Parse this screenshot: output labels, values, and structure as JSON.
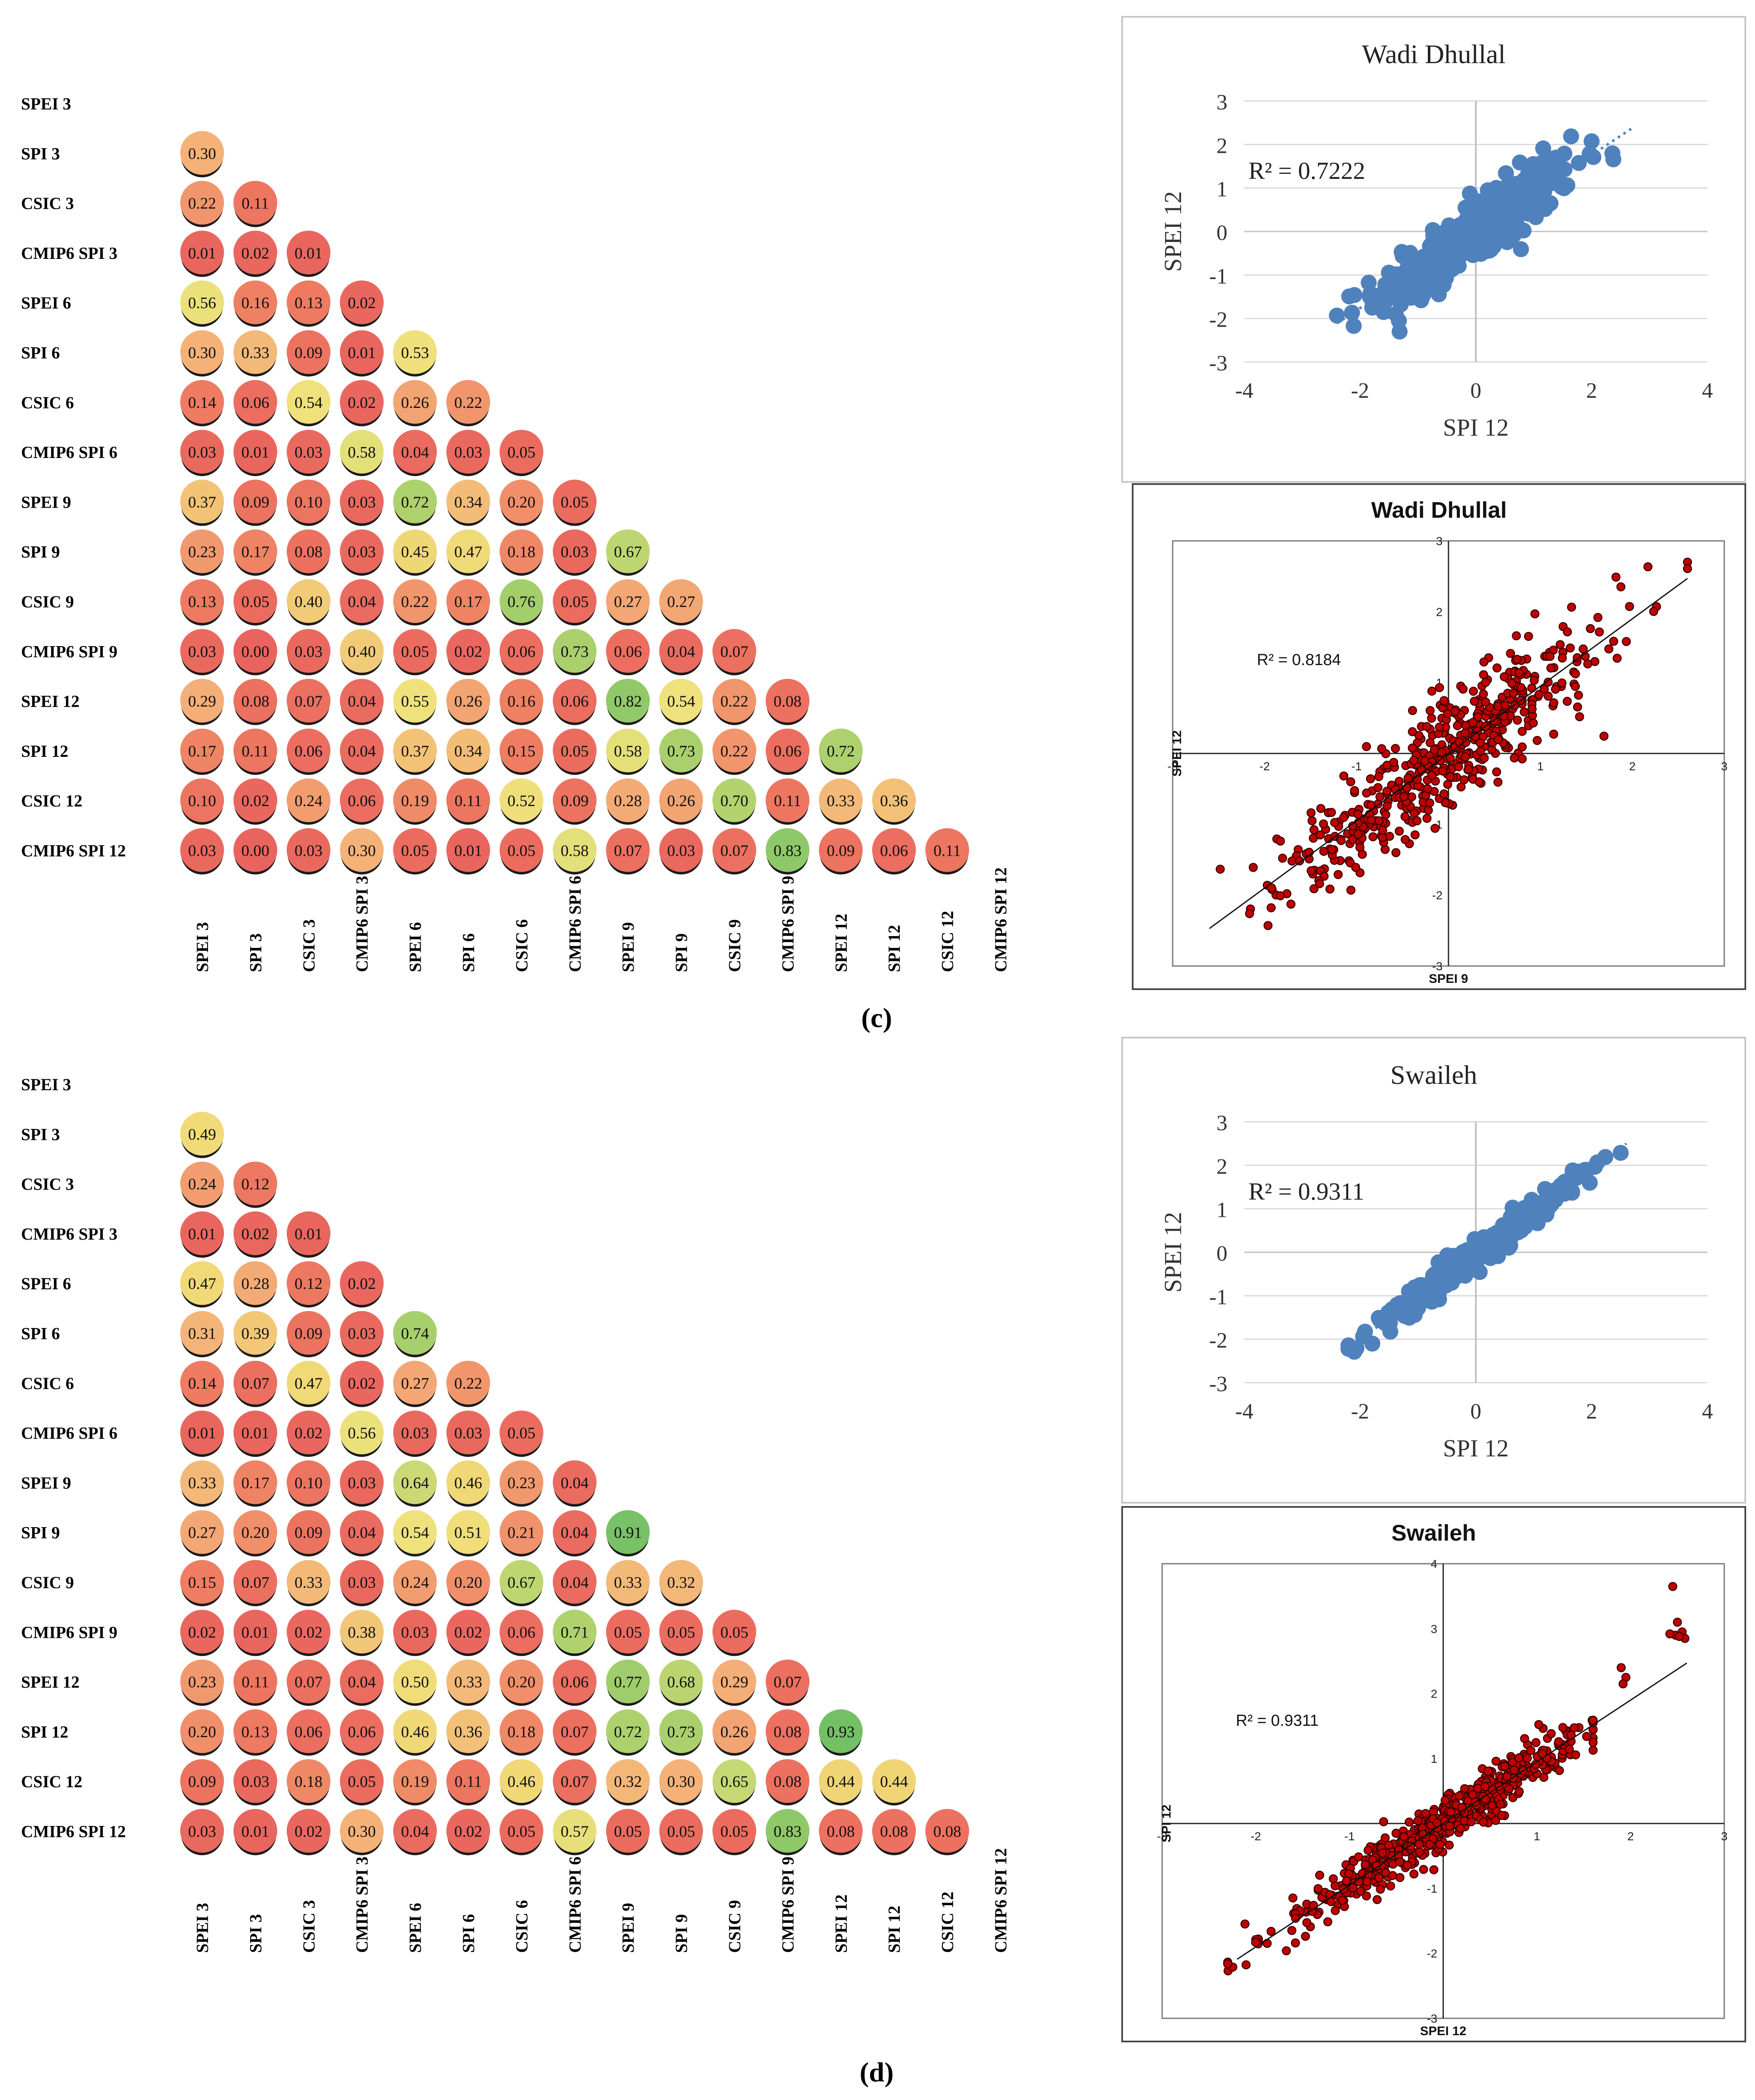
{
  "labels": [
    "SPEI 3",
    "SPI 3",
    "CSIC 3",
    "CMIP6 SPI 3",
    "SPEI 6",
    "SPI 6",
    "CSIC 6",
    "CMIP6 SPI 6",
    "SPEI 9",
    "SPI 9",
    "CSIC 9",
    "CMIP6 SPI 9",
    "SPEI 12",
    "SPI 12",
    "CSIC 12",
    "CMIP6 SPI 12"
  ],
  "panels": [
    {
      "label": "c",
      "caption": "(c)",
      "matrix": [
        [],
        [
          "0.30"
        ],
        [
          "0.22",
          "0.11"
        ],
        [
          "0.01",
          "0.02",
          "0.01"
        ],
        [
          "0.56",
          "0.16",
          "0.13",
          "0.02"
        ],
        [
          "0.30",
          "0.33",
          "0.09",
          "0.01",
          "0.53"
        ],
        [
          "0.14",
          "0.06",
          "0.54",
          "0.02",
          "0.26",
          "0.22"
        ],
        [
          "0.03",
          "0.01",
          "0.03",
          "0.58",
          "0.04",
          "0.03",
          "0.05"
        ],
        [
          "0.37",
          "0.09",
          "0.10",
          "0.03",
          "0.72",
          "0.34",
          "0.20",
          "0.05"
        ],
        [
          "0.23",
          "0.17",
          "0.08",
          "0.03",
          "0.45",
          "0.47",
          "0.18",
          "0.03",
          "0.67"
        ],
        [
          "0.13",
          "0.05",
          "0.40",
          "0.04",
          "0.22",
          "0.17",
          "0.76",
          "0.05",
          "0.27",
          "0.27"
        ],
        [
          "0.03",
          "0.00",
          "0.03",
          "0.40",
          "0.05",
          "0.02",
          "0.06",
          "0.73",
          "0.06",
          "0.04",
          "0.07"
        ],
        [
          "0.29",
          "0.08",
          "0.07",
          "0.04",
          "0.55",
          "0.26",
          "0.16",
          "0.06",
          "0.82",
          "0.54",
          "0.22",
          "0.08"
        ],
        [
          "0.17",
          "0.11",
          "0.06",
          "0.04",
          "0.37",
          "0.34",
          "0.15",
          "0.05",
          "0.58",
          "0.73",
          "0.22",
          "0.06",
          "0.72"
        ],
        [
          "0.10",
          "0.02",
          "0.24",
          "0.06",
          "0.19",
          "0.11",
          "0.52",
          "0.09",
          "0.28",
          "0.26",
          "0.70",
          "0.11",
          "0.33",
          "0.36"
        ],
        [
          "0.03",
          "0.00",
          "0.03",
          "0.30",
          "0.05",
          "0.01",
          "0.05",
          "0.58",
          "0.07",
          "0.03",
          "0.07",
          "0.83",
          "0.09",
          "0.06",
          "0.11"
        ]
      ],
      "scatter_blue": {
        "title": "Wadi Dhullal",
        "r2": "R² = 0.7222",
        "xlabel": "SPI 12",
        "ylabel": "SPEI 12",
        "xticks": [
          "-4",
          "-2",
          "0",
          "2",
          "4"
        ],
        "yticks": [
          "3",
          "2",
          "1",
          "0",
          "-1",
          "-2",
          "-3"
        ]
      },
      "scatter_red": {
        "title": "Wadi Dhullal",
        "r2": "R² = 0.8184",
        "xlabel": "SPEI 9",
        "ylabel": "SPEI 12",
        "xticks": [
          "-3",
          "-2",
          "-1",
          "0",
          "1",
          "2",
          "3"
        ],
        "yticks": [
          "3",
          "2",
          "1",
          "-1",
          "-2",
          "-3"
        ]
      }
    },
    {
      "label": "d",
      "caption": "(d)",
      "matrix": [
        [],
        [
          "0.49"
        ],
        [
          "0.24",
          "0.12"
        ],
        [
          "0.01",
          "0.02",
          "0.01"
        ],
        [
          "0.47",
          "0.28",
          "0.12",
          "0.02"
        ],
        [
          "0.31",
          "0.39",
          "0.09",
          "0.03",
          "0.74"
        ],
        [
          "0.14",
          "0.07",
          "0.47",
          "0.02",
          "0.27",
          "0.22"
        ],
        [
          "0.01",
          "0.01",
          "0.02",
          "0.56",
          "0.03",
          "0.03",
          "0.05"
        ],
        [
          "0.33",
          "0.17",
          "0.10",
          "0.03",
          "0.64",
          "0.46",
          "0.23",
          "0.04"
        ],
        [
          "0.27",
          "0.20",
          "0.09",
          "0.04",
          "0.54",
          "0.51",
          "0.21",
          "0.04",
          "0.91"
        ],
        [
          "0.15",
          "0.07",
          "0.33",
          "0.03",
          "0.24",
          "0.20",
          "0.67",
          "0.04",
          "0.33",
          "0.32"
        ],
        [
          "0.02",
          "0.01",
          "0.02",
          "0.38",
          "0.03",
          "0.02",
          "0.06",
          "0.71",
          "0.05",
          "0.05",
          "0.05"
        ],
        [
          "0.23",
          "0.11",
          "0.07",
          "0.04",
          "0.50",
          "0.33",
          "0.20",
          "0.06",
          "0.77",
          "0.68",
          "0.29",
          "0.07"
        ],
        [
          "0.20",
          "0.13",
          "0.06",
          "0.06",
          "0.46",
          "0.36",
          "0.18",
          "0.07",
          "0.72",
          "0.73",
          "0.26",
          "0.08",
          "0.93"
        ],
        [
          "0.09",
          "0.03",
          "0.18",
          "0.05",
          "0.19",
          "0.11",
          "0.46",
          "0.07",
          "0.32",
          "0.30",
          "0.65",
          "0.08",
          "0.44",
          "0.44"
        ],
        [
          "0.03",
          "0.01",
          "0.02",
          "0.30",
          "0.04",
          "0.02",
          "0.05",
          "0.57",
          "0.05",
          "0.05",
          "0.05",
          "0.83",
          "0.08",
          "0.08",
          "0.08"
        ]
      ],
      "scatter_blue": {
        "title": "Swaileh",
        "r2": "R² = 0.9311",
        "xlabel": "SPI 12",
        "ylabel": "SPEI 12",
        "xticks": [
          "-4",
          "-2",
          "0",
          "2",
          "4"
        ],
        "yticks": [
          "3",
          "2",
          "1",
          "0",
          "-1",
          "-2",
          "-3"
        ]
      },
      "scatter_red": {
        "title": "Swaileh",
        "r2": "R² = 0.9311",
        "xlabel": "SPEI 12",
        "ylabel": "SPI 12",
        "xticks": [
          "-3",
          "-2",
          "-1",
          "0",
          "1",
          "2",
          "3"
        ],
        "yticks": [
          "4",
          "3",
          "2",
          "1",
          "-1",
          "-2",
          "-3"
        ]
      }
    }
  ],
  "chart_data": [
    {
      "type": "heatmap",
      "title": "(c) correlation matrix (lower triangle)",
      "rows": [
        "SPEI 3",
        "SPI 3",
        "CSIC 3",
        "CMIP6 SPI 3",
        "SPEI 6",
        "SPI 6",
        "CSIC 6",
        "CMIP6 SPI 6",
        "SPEI 9",
        "SPI 9",
        "CSIC 9",
        "CMIP6 SPI 9",
        "SPEI 12",
        "SPI 12",
        "CSIC 12",
        "CMIP6 SPI 12"
      ],
      "columns": [
        "SPEI 3",
        "SPI 3",
        "CSIC 3",
        "CMIP6 SPI 3",
        "SPEI 6",
        "SPI 6",
        "CSIC 6",
        "CMIP6 SPI 6",
        "SPEI 9",
        "SPI 9",
        "CSIC 9",
        "CMIP6 SPI 9",
        "SPEI 12",
        "SPI 12",
        "CSIC 12",
        "CMIP6 SPI 12"
      ],
      "color_scale": [
        "#e9675e",
        "#f4b678",
        "#efdc7b",
        "#9dc96d"
      ]
    },
    {
      "type": "scatter",
      "title": "Wadi Dhullal",
      "xlabel": "SPI 12",
      "ylabel": "SPEI 12",
      "xlim": [
        -4,
        4
      ],
      "ylim": [
        -3,
        3
      ],
      "r2": 0.7222,
      "trend": "dotted linear"
    },
    {
      "type": "scatter",
      "title": "Wadi Dhullal",
      "xlabel": "SPEI 9",
      "ylabel": "SPEI 12",
      "xlim": [
        -3,
        3
      ],
      "ylim": [
        -3,
        3
      ],
      "r2": 0.8184,
      "trend": "solid linear"
    },
    {
      "type": "heatmap",
      "title": "(d) correlation matrix (lower triangle)",
      "rows": [
        "SPEI 3",
        "SPI 3",
        "CSIC 3",
        "CMIP6 SPI 3",
        "SPEI 6",
        "SPI 6",
        "CSIC 6",
        "CMIP6 SPI 6",
        "SPEI 9",
        "SPI 9",
        "CSIC 9",
        "CMIP6 SPI 9",
        "SPEI 12",
        "SPI 12",
        "CSIC 12",
        "CMIP6 SPI 12"
      ],
      "columns": [
        "SPEI 3",
        "SPI 3",
        "CSIC 3",
        "CMIP6 SPI 3",
        "SPEI 6",
        "SPI 6",
        "CSIC 6",
        "CMIP6 SPI 6",
        "SPEI 9",
        "SPI 9",
        "CSIC 9",
        "CMIP6 SPI 9",
        "SPEI 12",
        "SPI 12",
        "CSIC 12",
        "CMIP6 SPI 12"
      ],
      "color_scale": [
        "#e9675e",
        "#f4b678",
        "#efdc7b",
        "#9dc96d"
      ]
    },
    {
      "type": "scatter",
      "title": "Swaileh",
      "xlabel": "SPI 12",
      "ylabel": "SPEI 12",
      "xlim": [
        -4,
        4
      ],
      "ylim": [
        -3,
        3
      ],
      "r2": 0.9311,
      "trend": "dotted linear"
    },
    {
      "type": "scatter",
      "title": "Swaileh",
      "xlabel": "SPEI 12",
      "ylabel": "SPI 12",
      "xlim": [
        -3,
        3
      ],
      "ylim": [
        -3,
        4
      ],
      "r2": 0.9311,
      "trend": "solid linear"
    }
  ]
}
